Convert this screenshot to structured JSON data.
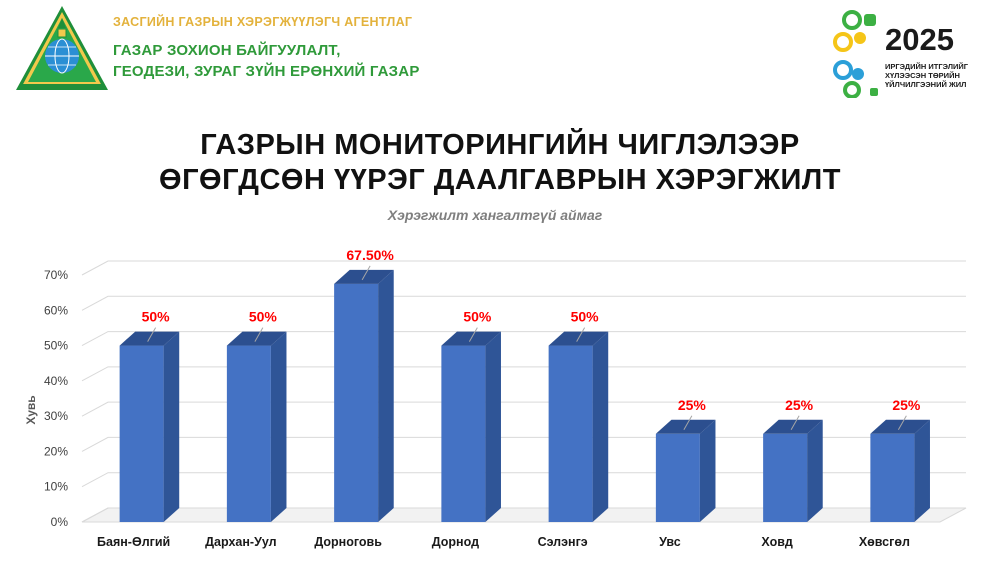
{
  "header": {
    "agency_line1": "ЗАСГИЙН ГАЗРЫН ХЭРЭГЖҮҮЛЭГЧ АГЕНТЛАГ",
    "agency_line2": "ГАЗАР ЗОХИОН БАЙГУУЛАЛТ,",
    "agency_line3": "ГЕОДЕЗИ, ЗУРАГ ЗҮЙН ЕРӨНХИЙ ГАЗАР",
    "emblem_icon": "mongolia-soyombo-globe-emblem-icon",
    "year": "2025",
    "slogan_line1": "ИРГЭДИЙН ИТГЭЛИЙГ",
    "slogan_line2": "ХҮЛЭЭСЭН ТӨРИЙН",
    "slogan_line3": "ҮЙЛЧИЛГЭЭНИЙ ЖИЛ",
    "year_logo_icon": "people-circle-logo-icon",
    "colors": {
      "gold": "#e3b23c",
      "green": "#2f9a3a"
    }
  },
  "title": {
    "line1": "ГАЗРЫН МОНИТОРИНГИЙН ЧИГЛЭЛЭЭР",
    "line2": "ӨГӨГДСӨН ҮҮРЭГ ДААЛГАВРЫН ХЭРЭГЖИЛТ"
  },
  "chart_data": {
    "type": "bar",
    "style": "3d-column",
    "subtitle": "Хэрэгжилт хангалтгүй аймаг",
    "xlabel": "",
    "ylabel": "Хувь",
    "ylim": [
      0,
      70
    ],
    "ytick_values": [
      0,
      10,
      20,
      30,
      40,
      50,
      60,
      70
    ],
    "ytick_labels": [
      "0%",
      "10%",
      "20%",
      "30%",
      "40%",
      "50%",
      "60%",
      "70%"
    ],
    "grid": true,
    "legend": "none",
    "categories": [
      "Баян-Өлгий",
      "Дархан-Уул",
      "Дорноговь",
      "Дорнод",
      "Сэлэнгэ",
      "Увс",
      "Ховд",
      "Хөвсгөл"
    ],
    "values": [
      50,
      50,
      67.5,
      50,
      50,
      25,
      25,
      25
    ],
    "data_labels": [
      "50%",
      "50%",
      "67.50%",
      "50%",
      "50%",
      "25%",
      "25%",
      "25%"
    ],
    "bar_color": "#4472c4",
    "bar_side_color": "#2f5597",
    "bar_top_color": "#2c4f8f",
    "data_label_color": "#ff0000"
  }
}
